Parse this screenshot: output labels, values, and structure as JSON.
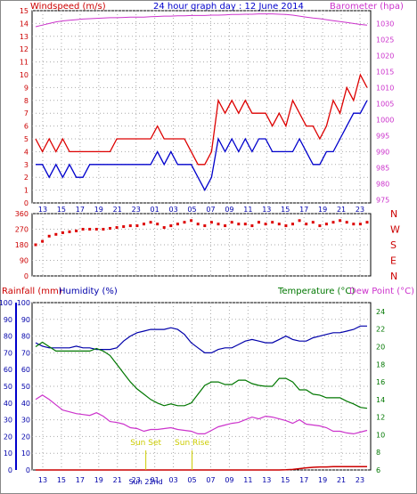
{
  "title": "24 hour graph day : 12 June 2014",
  "colors": {
    "wind": "#dd0000",
    "gust_series": "#0000cc",
    "barometer": "#cc33cc",
    "humidity": "#0000aa",
    "temperature": "#007700",
    "dewpoint": "#cc33cc",
    "rainfall": "#cc0000",
    "direction": "#dd0000",
    "grid": "#aaaaaa",
    "sun": "#cccc00"
  },
  "top_labels": {
    "left": "Windspeed (m/s)",
    "right": "Barometer (hpa)"
  },
  "bottom_labels": {
    "rainfall": "Rainfall (mm)",
    "humidity": "Humidity (%)",
    "temperature": "Temperature (°C)",
    "dewpoint": "Dew Point (°C)"
  },
  "annotations": {
    "sunset": "Sun Set",
    "sunrise": "Sun Rise",
    "day_marker": "Sun 22nd"
  },
  "chart_data": [
    {
      "type": "line",
      "panel": "wind_barometer",
      "x_ticks": [
        "13",
        "15",
        "17",
        "19",
        "21",
        "23",
        "01",
        "03",
        "05",
        "07",
        "09",
        "11",
        "13",
        "15",
        "17",
        "19",
        "21",
        "23"
      ],
      "y_left_ticks": [
        0,
        1,
        2,
        3,
        4,
        5,
        6,
        7,
        8,
        9,
        10,
        11,
        12,
        13,
        14,
        15
      ],
      "y_left_range": [
        0,
        15
      ],
      "y_right_ticks": [
        975,
        980,
        985,
        990,
        995,
        1000,
        1005,
        1010,
        1015,
        1020,
        1025,
        1030
      ],
      "y_right_range": [
        974,
        1034
      ],
      "series": [
        {
          "role": "wind_max",
          "values": [
            5,
            4,
            5,
            4,
            5,
            4,
            4,
            4,
            4,
            4,
            4,
            4,
            5,
            5,
            5,
            5,
            5,
            5,
            6,
            5,
            5,
            5,
            5,
            4,
            3,
            3,
            4,
            8,
            7,
            8,
            7,
            8,
            7,
            7,
            7,
            6,
            7,
            6,
            8,
            7,
            6,
            6,
            5,
            6,
            8,
            7,
            9,
            8,
            10,
            9
          ]
        },
        {
          "role": "wind_avg",
          "values": [
            3,
            3,
            2,
            3,
            2,
            3,
            2,
            2,
            3,
            3,
            3,
            3,
            3,
            3,
            3,
            3,
            3,
            3,
            4,
            3,
            4,
            3,
            3,
            3,
            2,
            1,
            2,
            5,
            4,
            5,
            4,
            5,
            4,
            5,
            5,
            4,
            4,
            4,
            4,
            5,
            4,
            3,
            3,
            4,
            4,
            5,
            6,
            7,
            7,
            8
          ]
        },
        {
          "role": "barometer",
          "values": [
            1029,
            1029.5,
            1030,
            1030.5,
            1030.8,
            1031,
            1031.2,
            1031.4,
            1031.5,
            1031.6,
            1031.7,
            1031.8,
            1031.8,
            1031.9,
            1032,
            1032,
            1032,
            1032.1,
            1032.2,
            1032.3,
            1032.3,
            1032.4,
            1032.4,
            1032.5,
            1032.5,
            1032.5,
            1032.6,
            1032.6,
            1032.7,
            1032.8,
            1032.8,
            1032.9,
            1032.9,
            1033,
            1033,
            1033,
            1032.9,
            1032.8,
            1032.6,
            1032.3,
            1032,
            1031.7,
            1031.5,
            1031.2,
            1030.9,
            1030.6,
            1030.3,
            1030,
            1029.7,
            1029.5
          ]
        }
      ]
    },
    {
      "type": "scatter",
      "panel": "wind_direction",
      "y_ticks": [
        0,
        90,
        180,
        270,
        360
      ],
      "y_range": [
        0,
        360
      ],
      "compass": [
        "N",
        "W",
        "S",
        "E",
        "N"
      ],
      "values": [
        180,
        200,
        230,
        240,
        250,
        255,
        260,
        270,
        270,
        270,
        270,
        275,
        280,
        285,
        290,
        290,
        300,
        310,
        300,
        280,
        290,
        300,
        310,
        320,
        300,
        290,
        310,
        300,
        290,
        310,
        300,
        300,
        290,
        310,
        300,
        310,
        300,
        290,
        300,
        320,
        300,
        310,
        290,
        300,
        310,
        320,
        310,
        300,
        300,
        310
      ]
    },
    {
      "type": "line",
      "panel": "humidity_temp_dew_rain",
      "x_ticks": [
        "13",
        "15",
        "17",
        "19",
        "21",
        "23",
        "01",
        "03",
        "05",
        "07",
        "09",
        "11",
        "13",
        "15",
        "17",
        "19",
        "21",
        "23"
      ],
      "y_left_ticks": [
        0,
        10,
        20,
        30,
        40,
        50,
        60,
        70,
        80,
        90,
        100
      ],
      "y_left_range": [
        0,
        100
      ],
      "y_right_ticks": [
        6,
        8,
        10,
        12,
        14,
        16,
        18,
        20,
        22,
        24
      ],
      "y_right_range": [
        6,
        25
      ],
      "series": [
        {
          "role": "humidity",
          "values": [
            76,
            74,
            73,
            73,
            73,
            73,
            74,
            73,
            73,
            72,
            72,
            72,
            73,
            77,
            80,
            82,
            83,
            84,
            84,
            84,
            85,
            84,
            81,
            76,
            73,
            70,
            70,
            72,
            73,
            73,
            75,
            77,
            78,
            77,
            76,
            76,
            78,
            80,
            78,
            77,
            77,
            79,
            80,
            81,
            82,
            82,
            83,
            84,
            86,
            86
          ]
        },
        {
          "role": "temperature",
          "values": [
            20,
            20.5,
            20,
            19.5,
            19.5,
            19.5,
            19.5,
            19.5,
            19.5,
            19.8,
            19.5,
            19,
            18,
            17,
            16,
            15.2,
            14.6,
            14,
            13.6,
            13.3,
            13.5,
            13.3,
            13.3,
            13.6,
            14.6,
            15.6,
            16,
            16,
            15.7,
            15.7,
            16.2,
            16.2,
            15.8,
            15.6,
            15.5,
            15.5,
            16.4,
            16.4,
            16.0,
            15.1,
            15.1,
            14.6,
            14.5,
            14.2,
            14.2,
            14.2,
            13.8,
            13.5,
            13.1,
            13.0
          ]
        },
        {
          "role": "dewpoint",
          "values": [
            14,
            14.5,
            14,
            13.4,
            12.8,
            12.6,
            12.4,
            12.3,
            12.2,
            12.5,
            12.1,
            11.5,
            11.4,
            11.2,
            10.8,
            10.7,
            10.4,
            10.6,
            10.6,
            10.7,
            10.8,
            10.6,
            10.5,
            10.4,
            10.1,
            10.1,
            10.5,
            10.9,
            11.1,
            11.3,
            11.4,
            11.7,
            12.0,
            11.8,
            12.1,
            12.0,
            11.8,
            11.6,
            11.3,
            11.7,
            11.2,
            11.1,
            11.0,
            10.8,
            10.4,
            10.4,
            10.2,
            10.1,
            10.3,
            10.5
          ]
        },
        {
          "role": "rainfall",
          "values": [
            0,
            0,
            0,
            0,
            0,
            0,
            0,
            0,
            0,
            0,
            0,
            0,
            0,
            0,
            0,
            0,
            0,
            0,
            0,
            0,
            0,
            0,
            0,
            0,
            0,
            0,
            0,
            0,
            0,
            0,
            0,
            0,
            0,
            0,
            0,
            0,
            0,
            0.1,
            0.3,
            0.8,
            1.3,
            1.6,
            1.8,
            1.8,
            2,
            2,
            2,
            2,
            2,
            2
          ]
        }
      ]
    }
  ]
}
